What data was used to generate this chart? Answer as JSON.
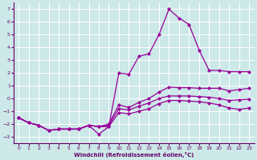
{
  "xlabel": "Windchill (Refroidissement éolien,°C)",
  "bg_color": "#cce8e8",
  "grid_color": "#ffffff",
  "line_color": "#990099",
  "x": [
    0,
    1,
    2,
    3,
    4,
    5,
    6,
    7,
    8,
    9,
    10,
    11,
    12,
    13,
    14,
    15,
    16,
    17,
    18,
    19,
    20,
    21,
    22,
    23
  ],
  "lines": {
    "top": [
      -1.5,
      -1.9,
      -2.1,
      -2.5,
      -2.4,
      -2.4,
      -2.4,
      -2.1,
      -2.8,
      -2.2,
      2.0,
      1.9,
      3.3,
      3.5,
      5.0,
      7.0,
      6.3,
      5.8,
      3.8,
      2.2,
      2.2,
      2.1,
      2.1,
      2.1
    ],
    "mid_upper": [
      -1.5,
      -1.9,
      -2.1,
      -2.5,
      -2.4,
      -2.4,
      -2.4,
      -2.1,
      -2.2,
      -2.0,
      -0.5,
      -0.7,
      -0.3,
      0.0,
      0.5,
      0.9,
      0.85,
      0.85,
      0.8,
      0.8,
      0.8,
      0.6,
      0.7,
      0.8
    ],
    "mid_lower": [
      -1.5,
      -1.9,
      -2.1,
      -2.5,
      -2.4,
      -2.4,
      -2.4,
      -2.1,
      -2.2,
      -2.1,
      -0.8,
      -0.9,
      -0.6,
      -0.35,
      0.0,
      0.2,
      0.2,
      0.2,
      0.15,
      0.1,
      0.0,
      -0.15,
      -0.1,
      -0.05
    ],
    "bottom": [
      -1.5,
      -1.9,
      -2.1,
      -2.5,
      -2.4,
      -2.4,
      -2.4,
      -2.1,
      -2.2,
      -2.2,
      -1.1,
      -1.2,
      -1.0,
      -0.8,
      -0.4,
      -0.15,
      -0.15,
      -0.2,
      -0.25,
      -0.35,
      -0.5,
      -0.75,
      -0.85,
      -0.75
    ]
  },
  "ylim": [
    -3.5,
    7.5
  ],
  "yticks": [
    -3,
    -2,
    -1,
    0,
    1,
    2,
    3,
    4,
    5,
    6,
    7
  ],
  "xlim": [
    -0.5,
    23.5
  ],
  "xticks": [
    0,
    1,
    2,
    3,
    4,
    5,
    6,
    7,
    8,
    9,
    10,
    11,
    12,
    13,
    14,
    15,
    16,
    17,
    18,
    19,
    20,
    21,
    22,
    23
  ],
  "marker_size": 2.2,
  "line_width": 0.9
}
